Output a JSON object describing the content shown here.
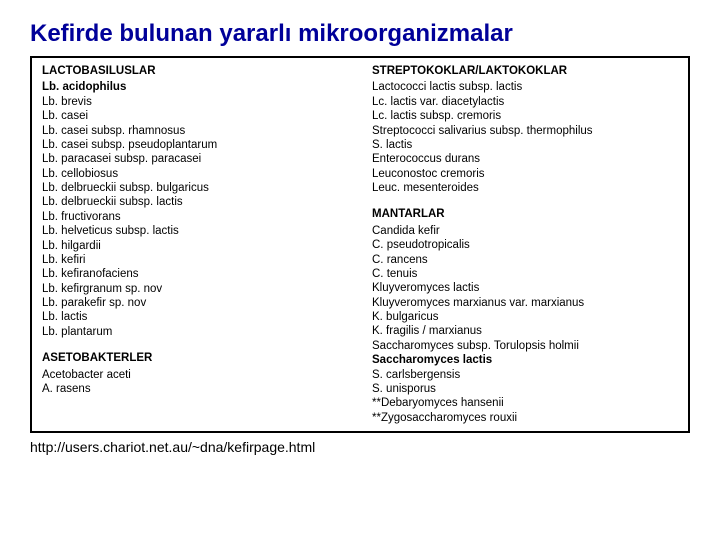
{
  "title": "Kefirde bulunan yararlı mikroorganizmalar",
  "left": {
    "section1": {
      "header": "LACTOBASILUSLAR"
    },
    "list1_first": "Lb. acidophilus",
    "list1": [
      "Lb. brevis",
      "Lb. casei",
      "Lb. casei subsp. rhamnosus",
      "Lb. casei subsp. pseudoplantarum",
      "Lb. paracasei subsp. paracasei",
      "Lb. cellobiosus",
      "Lb. delbrueckii subsp. bulgaricus",
      "Lb. delbrueckii subsp. lactis",
      "Lb. fructivorans",
      "Lb. helveticus subsp. lactis",
      "Lb. hilgardii",
      "Lb. kefiri",
      "Lb. kefiranofaciens",
      "Lb. kefirgranum sp. nov",
      "Lb. parakefir sp. nov",
      "Lb. lactis",
      "Lb. plantarum"
    ],
    "section2": {
      "header": "ASETOBAKTERLER"
    },
    "list2": [
      "Acetobacter aceti",
      "A. rasens"
    ]
  },
  "right": {
    "section1": {
      "header": "STREPTOKOKLAR/LAKTOKOKLAR"
    },
    "list1": [
      "Lactococci lactis subsp. lactis",
      "Lc. lactis var. diacetylactis",
      "Lc. lactis subsp. cremoris",
      "Streptococci salivarius subsp. thermophilus",
      "S. lactis",
      "Enterococcus durans",
      "Leuconostoc cremoris",
      "Leuc. mesenteroides"
    ],
    "section2": {
      "header": "MANTARLAR"
    },
    "list2": [
      "Candida kefir",
      "C. pseudotropicalis",
      "C. rancens",
      "C. tenuis",
      "Kluyveromyces lactis",
      "Kluyveromyces marxianus var. marxianus",
      "K. bulgaricus",
      "K. fragilis / marxianus",
      "Saccharomyces subsp. Torulopsis holmii"
    ],
    "list2_bold": [
      "Saccharomyces lactis"
    ],
    "list2_tail": [
      "S. carlsbergensis",
      "S. unisporus",
      "**Debaryomyces hansenii",
      "**Zygosaccharomyces rouxii"
    ]
  },
  "footer_url": "http://users.chariot.net.au/~dna/kefirpage.html"
}
